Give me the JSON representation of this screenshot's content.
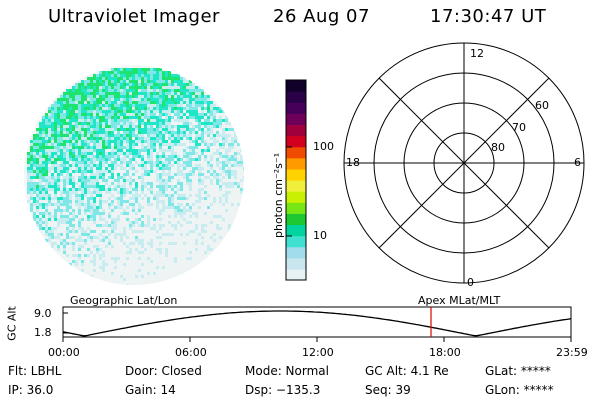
{
  "header": {
    "instrument": "Ultraviolet Imager",
    "date": "26 Aug 07",
    "time": "17:30:47 UT"
  },
  "colorbar": {
    "unit_label": "photon cm⁻²s⁻¹",
    "tick_100": "100",
    "tick_10": "10",
    "colors": [
      "#e6f2f5",
      "#c8e6ee",
      "#a0dceb",
      "#40e0d0",
      "#00d2a0",
      "#1ec832",
      "#78e614",
      "#c8f000",
      "#f0f03c",
      "#ffd200",
      "#ff9b00",
      "#f04b00",
      "#d2001e",
      "#a0003c",
      "#6e005a",
      "#46005a",
      "#2a0046",
      "#10002a"
    ]
  },
  "polar": {
    "mlt_12": "12",
    "mlt_18": "18",
    "mlt_6": "6",
    "mlt_0": "0",
    "lat_60": "60",
    "lat_70": "70",
    "lat_80": "80"
  },
  "orbit": {
    "left_title": "Geographic Lat/Lon",
    "right_title": "Apex  MLat/MLT",
    "axis_label": "GC Alt",
    "y_top": "9.0",
    "y_bottom": "1.8",
    "time_ticks": [
      "00:00",
      "06:00",
      "12:00",
      "18:00",
      "23:59"
    ],
    "marker_color": "#e00000"
  },
  "info": {
    "flt": "Flt: LBHL",
    "ip": "IP: 36.0",
    "door": "Door: Closed",
    "gain": "Gain: 14",
    "mode": "Mode: Normal",
    "dsp": "Dsp: −135.3",
    "gcalt": "GC Alt: 4.1 Re",
    "seq": "Seq: 39",
    "glat": "GLat: *****",
    "glon": "GLon: *****"
  }
}
